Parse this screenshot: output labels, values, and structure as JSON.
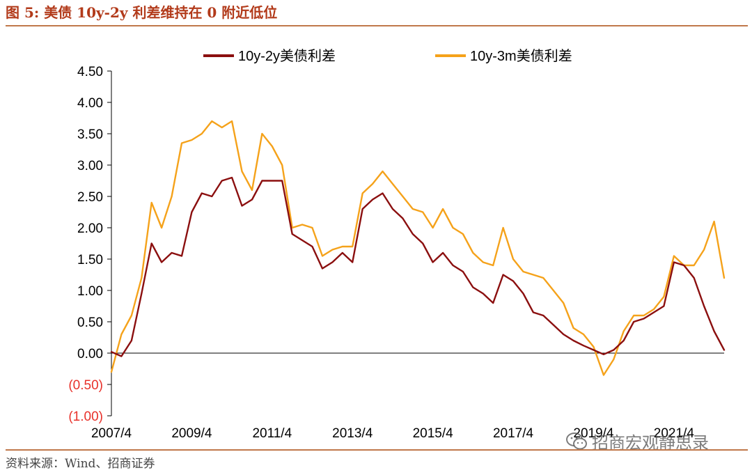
{
  "figure": {
    "title": "图 5:  美债 10y-2y 利差维持在 0 附近低位",
    "source": "资料来源：Wind、招商证券",
    "watermark": "招商宏观静思录",
    "watermark_icon": "wechat-icon"
  },
  "chart_data": {
    "type": "line",
    "title": "",
    "xlabel": "",
    "ylabel": "",
    "ylim": [
      -1.0,
      4.5
    ],
    "xlim": [
      2007.25,
      2022.5
    ],
    "yticks": [
      4.5,
      4.0,
      3.5,
      3.0,
      2.5,
      2.0,
      1.5,
      1.0,
      0.5,
      0.0,
      -0.5,
      -1.0
    ],
    "ytick_labels": [
      "4.50",
      "4.00",
      "3.50",
      "3.00",
      "2.50",
      "2.00",
      "1.50",
      "1.00",
      "0.50",
      "0.00",
      "(0.50)",
      "(1.00)"
    ],
    "negative_label_color": "#e8312a",
    "xtick_labels": [
      "2007/4",
      "2009/4",
      "2011/4",
      "2013/4",
      "2015/4",
      "2017/4",
      "2019/4",
      "2021/4"
    ],
    "xtick_values": [
      2007.25,
      2009.25,
      2011.25,
      2013.25,
      2015.25,
      2017.25,
      2019.25,
      2021.25
    ],
    "legend_position": "top",
    "grid": false,
    "series": [
      {
        "name": "10y-2y美债利差",
        "color": "#8b0f0f",
        "x": [
          2007.25,
          2007.5,
          2007.75,
          2008.0,
          2008.25,
          2008.5,
          2008.75,
          2009.0,
          2009.25,
          2009.5,
          2009.75,
          2010.0,
          2010.25,
          2010.5,
          2010.75,
          2011.0,
          2011.25,
          2011.5,
          2011.75,
          2012.0,
          2012.25,
          2012.5,
          2012.75,
          2013.0,
          2013.25,
          2013.5,
          2013.75,
          2014.0,
          2014.25,
          2014.5,
          2014.75,
          2015.0,
          2015.25,
          2015.5,
          2015.75,
          2016.0,
          2016.25,
          2016.5,
          2016.75,
          2017.0,
          2017.25,
          2017.5,
          2017.75,
          2018.0,
          2018.25,
          2018.5,
          2018.75,
          2019.0,
          2019.25,
          2019.5,
          2019.75,
          2020.0,
          2020.25,
          2020.5,
          2020.75,
          2021.0,
          2021.25,
          2021.5,
          2021.75,
          2022.0,
          2022.25,
          2022.5
        ],
        "y": [
          0.02,
          -0.05,
          0.2,
          0.95,
          1.75,
          1.45,
          1.6,
          1.55,
          2.25,
          2.55,
          2.5,
          2.75,
          2.8,
          2.35,
          2.45,
          2.75,
          2.75,
          2.75,
          1.9,
          1.8,
          1.7,
          1.35,
          1.45,
          1.6,
          1.45,
          2.3,
          2.45,
          2.55,
          2.3,
          2.15,
          1.9,
          1.75,
          1.45,
          1.6,
          1.4,
          1.3,
          1.05,
          0.95,
          0.8,
          1.25,
          1.15,
          0.95,
          0.65,
          0.6,
          0.45,
          0.3,
          0.2,
          0.12,
          0.05,
          -0.02,
          0.05,
          0.2,
          0.5,
          0.55,
          0.65,
          0.75,
          1.45,
          1.4,
          1.2,
          0.75,
          0.35,
          0.05
        ]
      },
      {
        "name": "10y-3m美债利差",
        "color": "#f5a21a",
        "x": [
          2007.25,
          2007.5,
          2007.75,
          2008.0,
          2008.25,
          2008.5,
          2008.75,
          2009.0,
          2009.25,
          2009.5,
          2009.75,
          2010.0,
          2010.25,
          2010.5,
          2010.75,
          2011.0,
          2011.25,
          2011.5,
          2011.75,
          2012.0,
          2012.25,
          2012.5,
          2012.75,
          2013.0,
          2013.25,
          2013.5,
          2013.75,
          2014.0,
          2014.25,
          2014.5,
          2014.75,
          2015.0,
          2015.25,
          2015.5,
          2015.75,
          2016.0,
          2016.25,
          2016.5,
          2016.75,
          2017.0,
          2017.25,
          2017.5,
          2017.75,
          2018.0,
          2018.25,
          2018.5,
          2018.75,
          2019.0,
          2019.25,
          2019.5,
          2019.75,
          2020.0,
          2020.25,
          2020.5,
          2020.75,
          2021.0,
          2021.25,
          2021.5,
          2021.75,
          2022.0,
          2022.25,
          2022.5
        ],
        "y": [
          -0.3,
          0.3,
          0.6,
          1.2,
          2.4,
          2.0,
          2.5,
          3.35,
          3.4,
          3.5,
          3.7,
          3.6,
          3.7,
          2.9,
          2.6,
          3.5,
          3.3,
          3.0,
          2.0,
          2.05,
          2.0,
          1.55,
          1.65,
          1.7,
          1.7,
          2.55,
          2.7,
          2.9,
          2.7,
          2.5,
          2.3,
          2.25,
          2.0,
          2.3,
          2.0,
          1.9,
          1.6,
          1.45,
          1.4,
          2.0,
          1.5,
          1.3,
          1.25,
          1.2,
          1.0,
          0.8,
          0.4,
          0.3,
          0.1,
          -0.35,
          -0.1,
          0.35,
          0.6,
          0.6,
          0.7,
          0.9,
          1.55,
          1.4,
          1.4,
          1.65,
          2.1,
          1.2
        ]
      }
    ]
  }
}
